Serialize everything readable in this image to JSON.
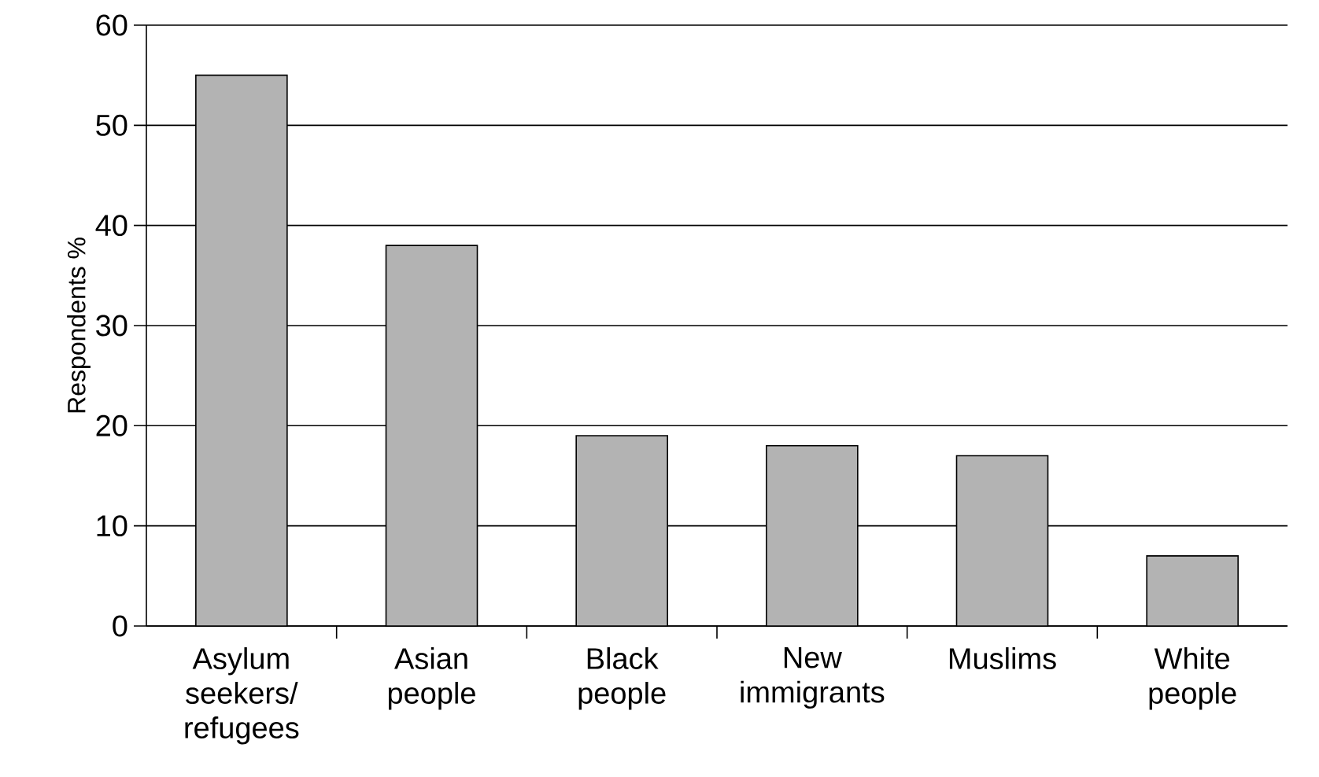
{
  "chart_data": {
    "type": "bar",
    "ylabel": "Respondents %",
    "categories": [
      "Asylum seekers/ refugees",
      "Asian people",
      "Black people",
      "New immigrants",
      "Muslims",
      "White people"
    ],
    "values": [
      55,
      38,
      19,
      18,
      17,
      7
    ],
    "color": "#b3b3b3",
    "ylim": [
      0,
      60
    ],
    "yticks": [
      0,
      10,
      20,
      30,
      40,
      50,
      60
    ],
    "grid": "y"
  }
}
